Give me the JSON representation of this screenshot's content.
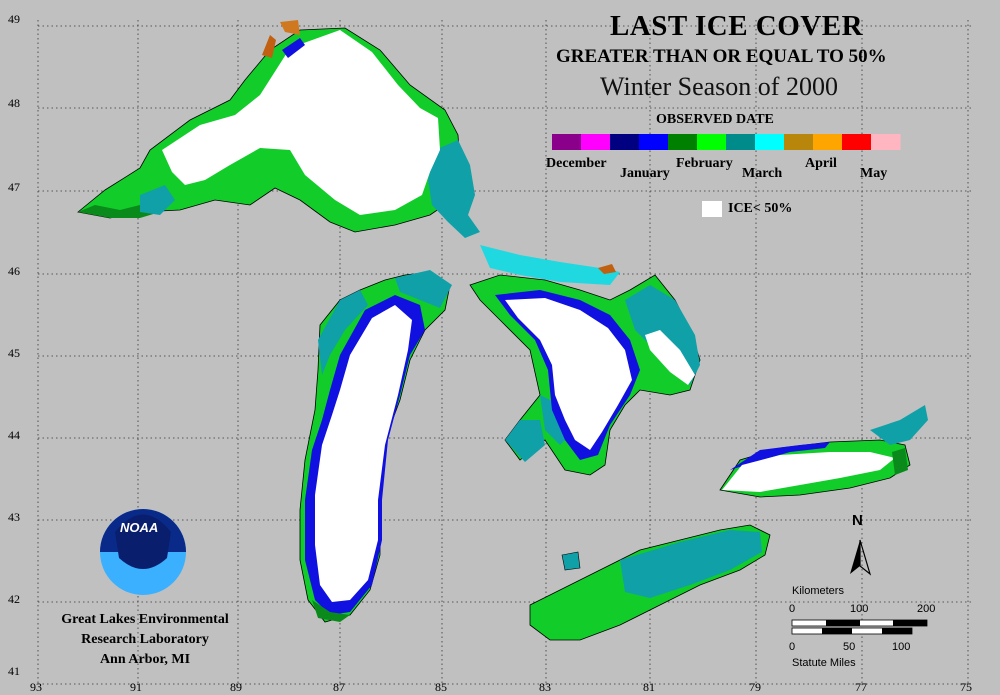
{
  "title": {
    "main": "LAST ICE COVER",
    "sub": "GREATER THAN OR EQUAL TO 50%",
    "season": "Winter Season of 2000"
  },
  "legend": {
    "heading": "OBSERVED DATE",
    "months": [
      "December",
      "January",
      "February",
      "March",
      "April",
      "May"
    ],
    "ramp_colors": [
      "#8b008b",
      "#ff00ff",
      "#000080",
      "#0000ff",
      "#008000",
      "#00ff00",
      "#008b8b",
      "#00ffff",
      "#b8860b",
      "#ffa500",
      "#ff0000",
      "#ffb6c1"
    ],
    "ice_label": "ICE< 50%",
    "ice_color": "#ffffff"
  },
  "axes": {
    "lat_ticks": [
      "49",
      "48",
      "47",
      "46",
      "45",
      "44",
      "43",
      "42",
      "41"
    ],
    "lon_ticks": [
      "93",
      "91",
      "89",
      "87",
      "85",
      "83",
      "81",
      "79",
      "77",
      "75"
    ]
  },
  "lab": {
    "logo_text": "NOAA",
    "line1": "Great Lakes Environmental",
    "line2": "Research Laboratory",
    "line3": "Ann Arbor, MI"
  },
  "scale": {
    "km_label": "Kilometers",
    "km_ticks": [
      "0",
      "100",
      "200"
    ],
    "mi_ticks": [
      "0",
      "50",
      "100"
    ],
    "mi_label": "Statute Miles"
  },
  "north": "N",
  "colors": {
    "background": "#c0c0c0",
    "land": "#c0c0c0",
    "ice": "#ffffff",
    "january": "#1010e0",
    "february": "#10d030",
    "february_dark": "#0a8a1a",
    "march": "#10a0a8",
    "march_light": "#20d8e0",
    "april": "#c06010"
  }
}
